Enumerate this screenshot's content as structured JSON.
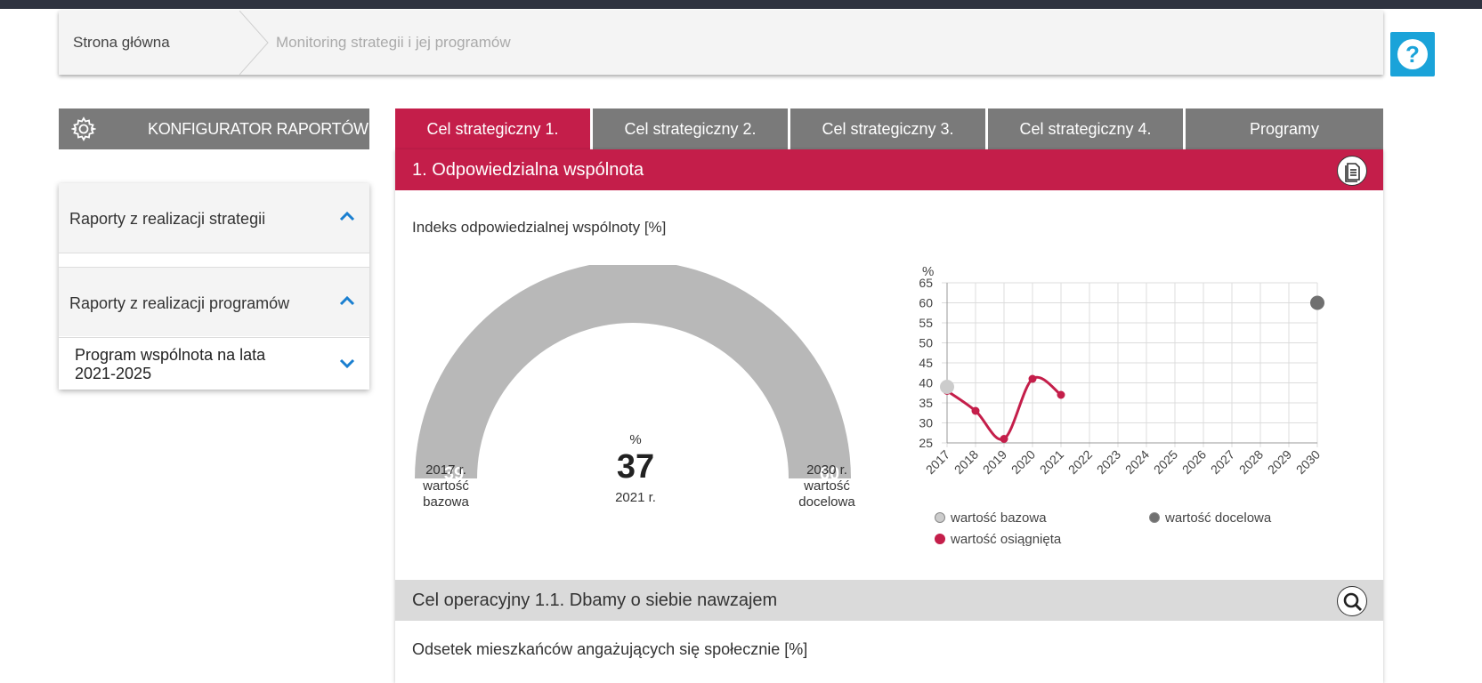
{
  "breadcrumb": {
    "home": "Strona główna",
    "current": "Monitoring strategii i jej programów"
  },
  "help": {
    "label": "?"
  },
  "configurator": {
    "label": "KONFIGURATOR RAPORTÓW"
  },
  "sidebar": {
    "section1": {
      "title": "Raporty z realizacji strategii"
    },
    "section2": {
      "title": "Raporty z realizacji programów"
    },
    "item1": {
      "label": "Program wspólnota na lata 2021-2025"
    }
  },
  "tabs": [
    {
      "label": "Cel strategiczny 1.",
      "active": true
    },
    {
      "label": "Cel strategiczny 2.",
      "active": false
    },
    {
      "label": "Cel strategiczny 3.",
      "active": false
    },
    {
      "label": "Cel strategiczny 4.",
      "active": false
    },
    {
      "label": "Programy",
      "active": false
    }
  ],
  "section": {
    "title": "1. Odpowiedzialna wspólnota"
  },
  "indicator": {
    "title": "Indeks odpowiedzialnej wspólnoty [%]",
    "gauge": {
      "base_value": "39",
      "target_value": "60",
      "unit": "%",
      "current_value": "37",
      "current_year": "2021 r.",
      "base_caption": "2017 r. wartość bazowa",
      "target_caption": "2030 r. wartość docelowa",
      "fraction": 0.0
    }
  },
  "chart_data": {
    "type": "line",
    "ylabel": "%",
    "ylim": [
      25,
      65
    ],
    "yticks": [
      25,
      30,
      35,
      40,
      45,
      50,
      55,
      60,
      65
    ],
    "x": [
      "2017",
      "2018",
      "2019",
      "2020",
      "2021",
      "2022",
      "2023",
      "2024",
      "2025",
      "2026",
      "2027",
      "2028",
      "2029",
      "2030"
    ],
    "grid": true,
    "series": [
      {
        "name": "wartość bazowa",
        "color": "#cccccc",
        "points": [
          {
            "x": "2017",
            "y": 39
          }
        ]
      },
      {
        "name": "wartość docelowa",
        "color": "#707070",
        "points": [
          {
            "x": "2030",
            "y": 60
          }
        ]
      },
      {
        "name": "wartość osiągnięta",
        "color": "#c41e4a",
        "points": [
          {
            "x": "2017",
            "y": 38
          },
          {
            "x": "2018",
            "y": 33
          },
          {
            "x": "2019",
            "y": 26
          },
          {
            "x": "2020",
            "y": 41
          },
          {
            "x": "2021",
            "y": 37
          }
        ]
      }
    ]
  },
  "operational": {
    "title": "Cel operacyjny 1.1. Dbamy o siebie nawzajem"
  },
  "sub_indicator": {
    "title": "Odsetek mieszkańców angażujących się społecznie [%]"
  },
  "colors": {
    "accent": "#c41e4a",
    "tab_inactive": "#7a7a7a",
    "help": "#1aa3d9"
  }
}
